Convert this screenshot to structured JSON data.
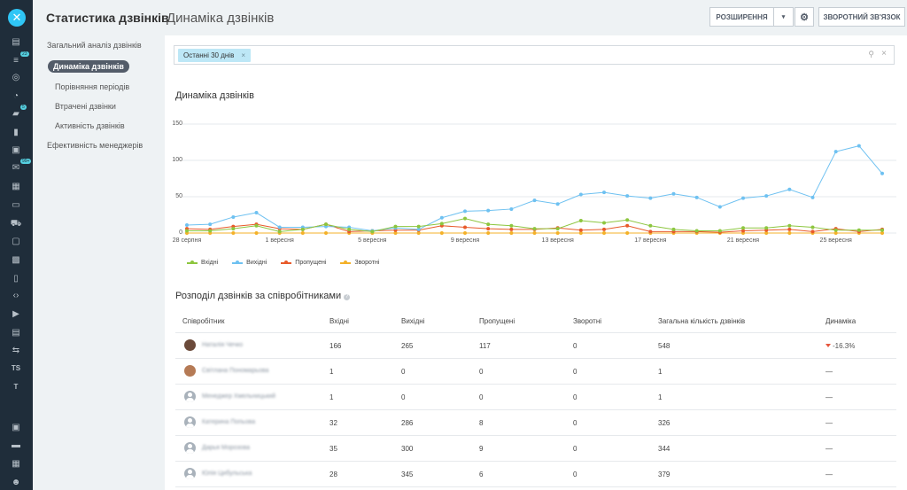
{
  "rail": {
    "items": [
      {
        "icon": "feed-icon"
      },
      {
        "icon": "tasks-icon",
        "badge": "23"
      },
      {
        "icon": "target-icon"
      },
      {
        "icon": "calendar-icon"
      },
      {
        "icon": "chat-icon",
        "badge": "5"
      },
      {
        "icon": "reports-icon"
      },
      {
        "icon": "drive-icon"
      },
      {
        "icon": "mail-icon",
        "badge": "99+"
      },
      {
        "icon": "crm-icon"
      },
      {
        "icon": "store-icon"
      },
      {
        "icon": "cart-icon"
      },
      {
        "icon": "sites-icon"
      },
      {
        "icon": "apps-icon"
      },
      {
        "icon": "knowledge-icon"
      },
      {
        "icon": "dev-icon"
      },
      {
        "icon": "video-icon"
      },
      {
        "icon": "docs-icon"
      },
      {
        "icon": "sync-icon"
      },
      {
        "icon": "ts-icon",
        "label": "TS"
      },
      {
        "icon": "t-icon",
        "label": "T"
      },
      {
        "icon": "contacts-icon"
      },
      {
        "icon": "storage-icon"
      },
      {
        "icon": "schedule-icon"
      },
      {
        "icon": "users-icon"
      }
    ]
  },
  "sidebar": {
    "title": "Статистика дзвінків",
    "items": [
      {
        "label": "Загальний аналіз дзвінків"
      },
      {
        "label": "Динаміка дзвінків",
        "active": true
      },
      {
        "label": "Порівняння періодів"
      },
      {
        "label": "Втрачені дзвінки"
      },
      {
        "label": "Активність дзвінків"
      },
      {
        "label": "Ефективність менеджерів"
      }
    ]
  },
  "header": {
    "title": "Динаміка дзвінків",
    "extensions_label": "РОЗШИРЕННЯ",
    "feedback_label": "ЗВОРОТНИЙ ЗВ'ЯЗОК"
  },
  "filter": {
    "chip_label": "Останні 30 днів"
  },
  "chart_data": {
    "type": "line",
    "title": "Динаміка дзвінків",
    "yticks": [
      "150",
      "100",
      "50",
      "0"
    ],
    "ylim": [
      0,
      150
    ],
    "x_tick_labels": [
      {
        "index": 0,
        "label": "28 серпня"
      },
      {
        "index": 4,
        "label": "1 вересня"
      },
      {
        "index": 8,
        "label": "5 вересня"
      },
      {
        "index": 12,
        "label": "9 вересня"
      },
      {
        "index": 16,
        "label": "13 вересня"
      },
      {
        "index": 20,
        "label": "17 вересня"
      },
      {
        "index": 24,
        "label": "21 вересня"
      },
      {
        "index": 28,
        "label": "25 вересня"
      }
    ],
    "series": [
      {
        "name": "Вхідні",
        "color": "#8dc63f",
        "values": [
          3,
          3,
          6,
          10,
          2,
          5,
          12,
          5,
          2,
          9,
          9,
          13,
          20,
          12,
          10,
          6,
          6,
          17,
          14,
          18,
          10,
          5,
          3,
          3,
          7,
          7,
          10,
          8,
          4,
          4,
          4
        ]
      },
      {
        "name": "Вихідні",
        "color": "#6ec1f1",
        "values": [
          11,
          12,
          22,
          28,
          8,
          8,
          9,
          8,
          3,
          7,
          5,
          21,
          30,
          31,
          33,
          45,
          40,
          53,
          56,
          51,
          48,
          54,
          49,
          36,
          48,
          51,
          60,
          49,
          112,
          120,
          82
        ]
      },
      {
        "name": "Пропущені",
        "color": "#e85a2a",
        "values": [
          6,
          5,
          9,
          12,
          6,
          5,
          12,
          2,
          3,
          4,
          4,
          10,
          8,
          6,
          5,
          5,
          7,
          4,
          5,
          10,
          2,
          2,
          2,
          1,
          3,
          4,
          5,
          2,
          6,
          2,
          5
        ]
      },
      {
        "name": "Зворотні",
        "color": "#f4b128",
        "values": [
          0,
          0,
          0,
          0,
          0,
          0,
          0,
          0,
          0,
          0,
          0,
          0,
          0,
          0,
          0,
          0,
          0,
          0,
          0,
          0,
          0,
          0,
          0,
          0,
          0,
          0,
          0,
          0,
          0,
          0,
          0
        ]
      }
    ],
    "legend_position": "bottom-left"
  },
  "table": {
    "title": "Розподіл дзвінків за співробітниками",
    "headers": [
      "Співробітник",
      "Вхідні",
      "Вихідні",
      "Пропущені",
      "Зворотні",
      "Загальна кількість дзвінків",
      "Динаміка"
    ],
    "rows": [
      {
        "name": "Наталія Чечко",
        "avatar": "photo",
        "in": "166",
        "out": "265",
        "missed": "117",
        "callback": "0",
        "total": "548",
        "dynamics": "-16.3%",
        "negative": true
      },
      {
        "name": "Світлана Пономарьова",
        "avatar": "photo2",
        "in": "1",
        "out": "0",
        "missed": "0",
        "callback": "0",
        "total": "1",
        "dynamics": "—"
      },
      {
        "name": "Менеджер Хмельницький",
        "avatar": "default",
        "in": "1",
        "out": "0",
        "missed": "0",
        "callback": "0",
        "total": "1",
        "dynamics": "—"
      },
      {
        "name": "Катерина Попьова",
        "avatar": "default",
        "in": "32",
        "out": "286",
        "missed": "8",
        "callback": "0",
        "total": "326",
        "dynamics": "—"
      },
      {
        "name": "Дарья Морозова",
        "avatar": "default",
        "in": "35",
        "out": "300",
        "missed": "9",
        "callback": "0",
        "total": "344",
        "dynamics": "—"
      },
      {
        "name": "Юлія Цибульська",
        "avatar": "default",
        "in": "28",
        "out": "345",
        "missed": "6",
        "callback": "0",
        "total": "379",
        "dynamics": "—"
      }
    ]
  }
}
